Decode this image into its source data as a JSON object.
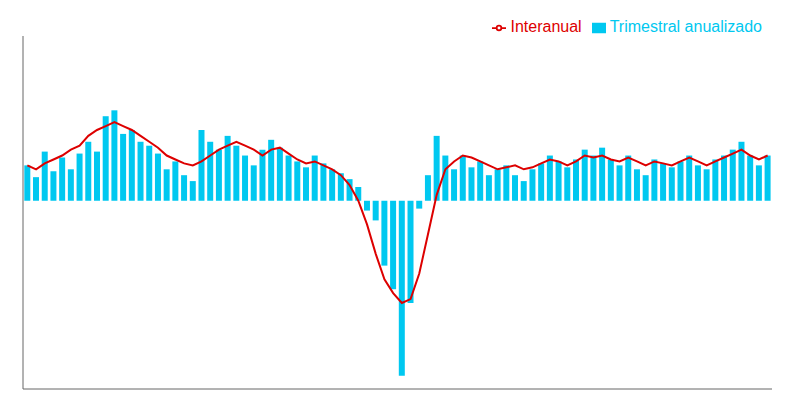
{
  "chart_data": {
    "type": "bar",
    "categories": [
      null,
      null,
      null,
      null,
      null,
      null,
      null,
      null,
      null,
      null,
      null,
      null,
      null,
      null,
      null,
      null,
      null,
      null,
      null,
      null,
      null,
      null,
      null,
      null,
      null,
      null,
      null,
      null,
      null,
      null,
      null,
      null,
      null,
      null,
      null,
      null,
      null,
      null,
      null,
      null,
      null,
      null,
      null,
      null,
      null,
      null,
      null,
      null,
      null,
      null,
      null,
      null,
      null,
      null,
      null,
      null,
      null,
      null,
      null,
      null,
      null,
      null,
      null,
      null,
      null,
      null,
      null,
      null,
      null,
      null,
      null,
      null,
      null,
      null,
      null,
      null,
      null,
      null,
      null,
      null,
      null,
      null,
      null,
      null,
      null,
      null
    ],
    "series": [
      {
        "name": "Trimestral anualizado",
        "type": "bar",
        "color": "#00c8f0",
        "values": [
          1.8,
          1.2,
          2.5,
          1.5,
          2.2,
          1.6,
          2.4,
          3.0,
          2.5,
          4.3,
          4.6,
          3.4,
          3.6,
          3.0,
          2.8,
          2.4,
          1.6,
          2.0,
          1.3,
          1.0,
          3.6,
          3.0,
          2.6,
          3.3,
          2.8,
          2.3,
          1.8,
          2.6,
          3.1,
          2.7,
          2.3,
          2.0,
          1.7,
          2.3,
          1.9,
          1.6,
          1.4,
          1.1,
          0.7,
          -0.5,
          -1.0,
          -3.3,
          -4.5,
          -8.9,
          -5.2,
          -0.4,
          1.3,
          3.3,
          2.3,
          1.6,
          2.3,
          1.7,
          2.0,
          1.3,
          1.6,
          1.8,
          1.3,
          1.0,
          1.6,
          1.9,
          2.3,
          2.0,
          1.7,
          2.1,
          2.6,
          2.3,
          2.7,
          2.1,
          1.8,
          2.3,
          1.6,
          1.3,
          2.1,
          1.9,
          1.7,
          2.0,
          2.3,
          1.8,
          1.6,
          2.1,
          2.3,
          2.6,
          3.0,
          2.3,
          1.8,
          2.3
        ]
      },
      {
        "name": "Interanual",
        "type": "line",
        "color": "#dd0000",
        "values": [
          1.8,
          1.6,
          1.9,
          2.1,
          2.3,
          2.6,
          2.8,
          3.3,
          3.6,
          3.8,
          4.0,
          3.8,
          3.6,
          3.3,
          3.0,
          2.7,
          2.3,
          2.1,
          1.9,
          1.8,
          2.0,
          2.3,
          2.6,
          2.8,
          3.0,
          2.8,
          2.6,
          2.3,
          2.6,
          2.7,
          2.4,
          2.1,
          1.9,
          2.0,
          1.8,
          1.6,
          1.3,
          0.8,
          0.0,
          -1.2,
          -2.7,
          -4.0,
          -4.7,
          -5.2,
          -5.0,
          -3.7,
          -1.7,
          0.3,
          1.6,
          2.0,
          2.3,
          2.2,
          2.0,
          1.8,
          1.6,
          1.7,
          1.8,
          1.6,
          1.7,
          1.9,
          2.1,
          2.0,
          1.8,
          2.0,
          2.3,
          2.2,
          2.3,
          2.1,
          2.0,
          2.2,
          2.0,
          1.8,
          2.0,
          1.9,
          1.8,
          2.0,
          2.2,
          2.0,
          1.8,
          2.0,
          2.2,
          2.4,
          2.6,
          2.3,
          2.1,
          2.3
        ]
      }
    ],
    "ylim": [
      -9.575,
      8.38
    ],
    "tick_labels": false,
    "legend": "upper right"
  }
}
